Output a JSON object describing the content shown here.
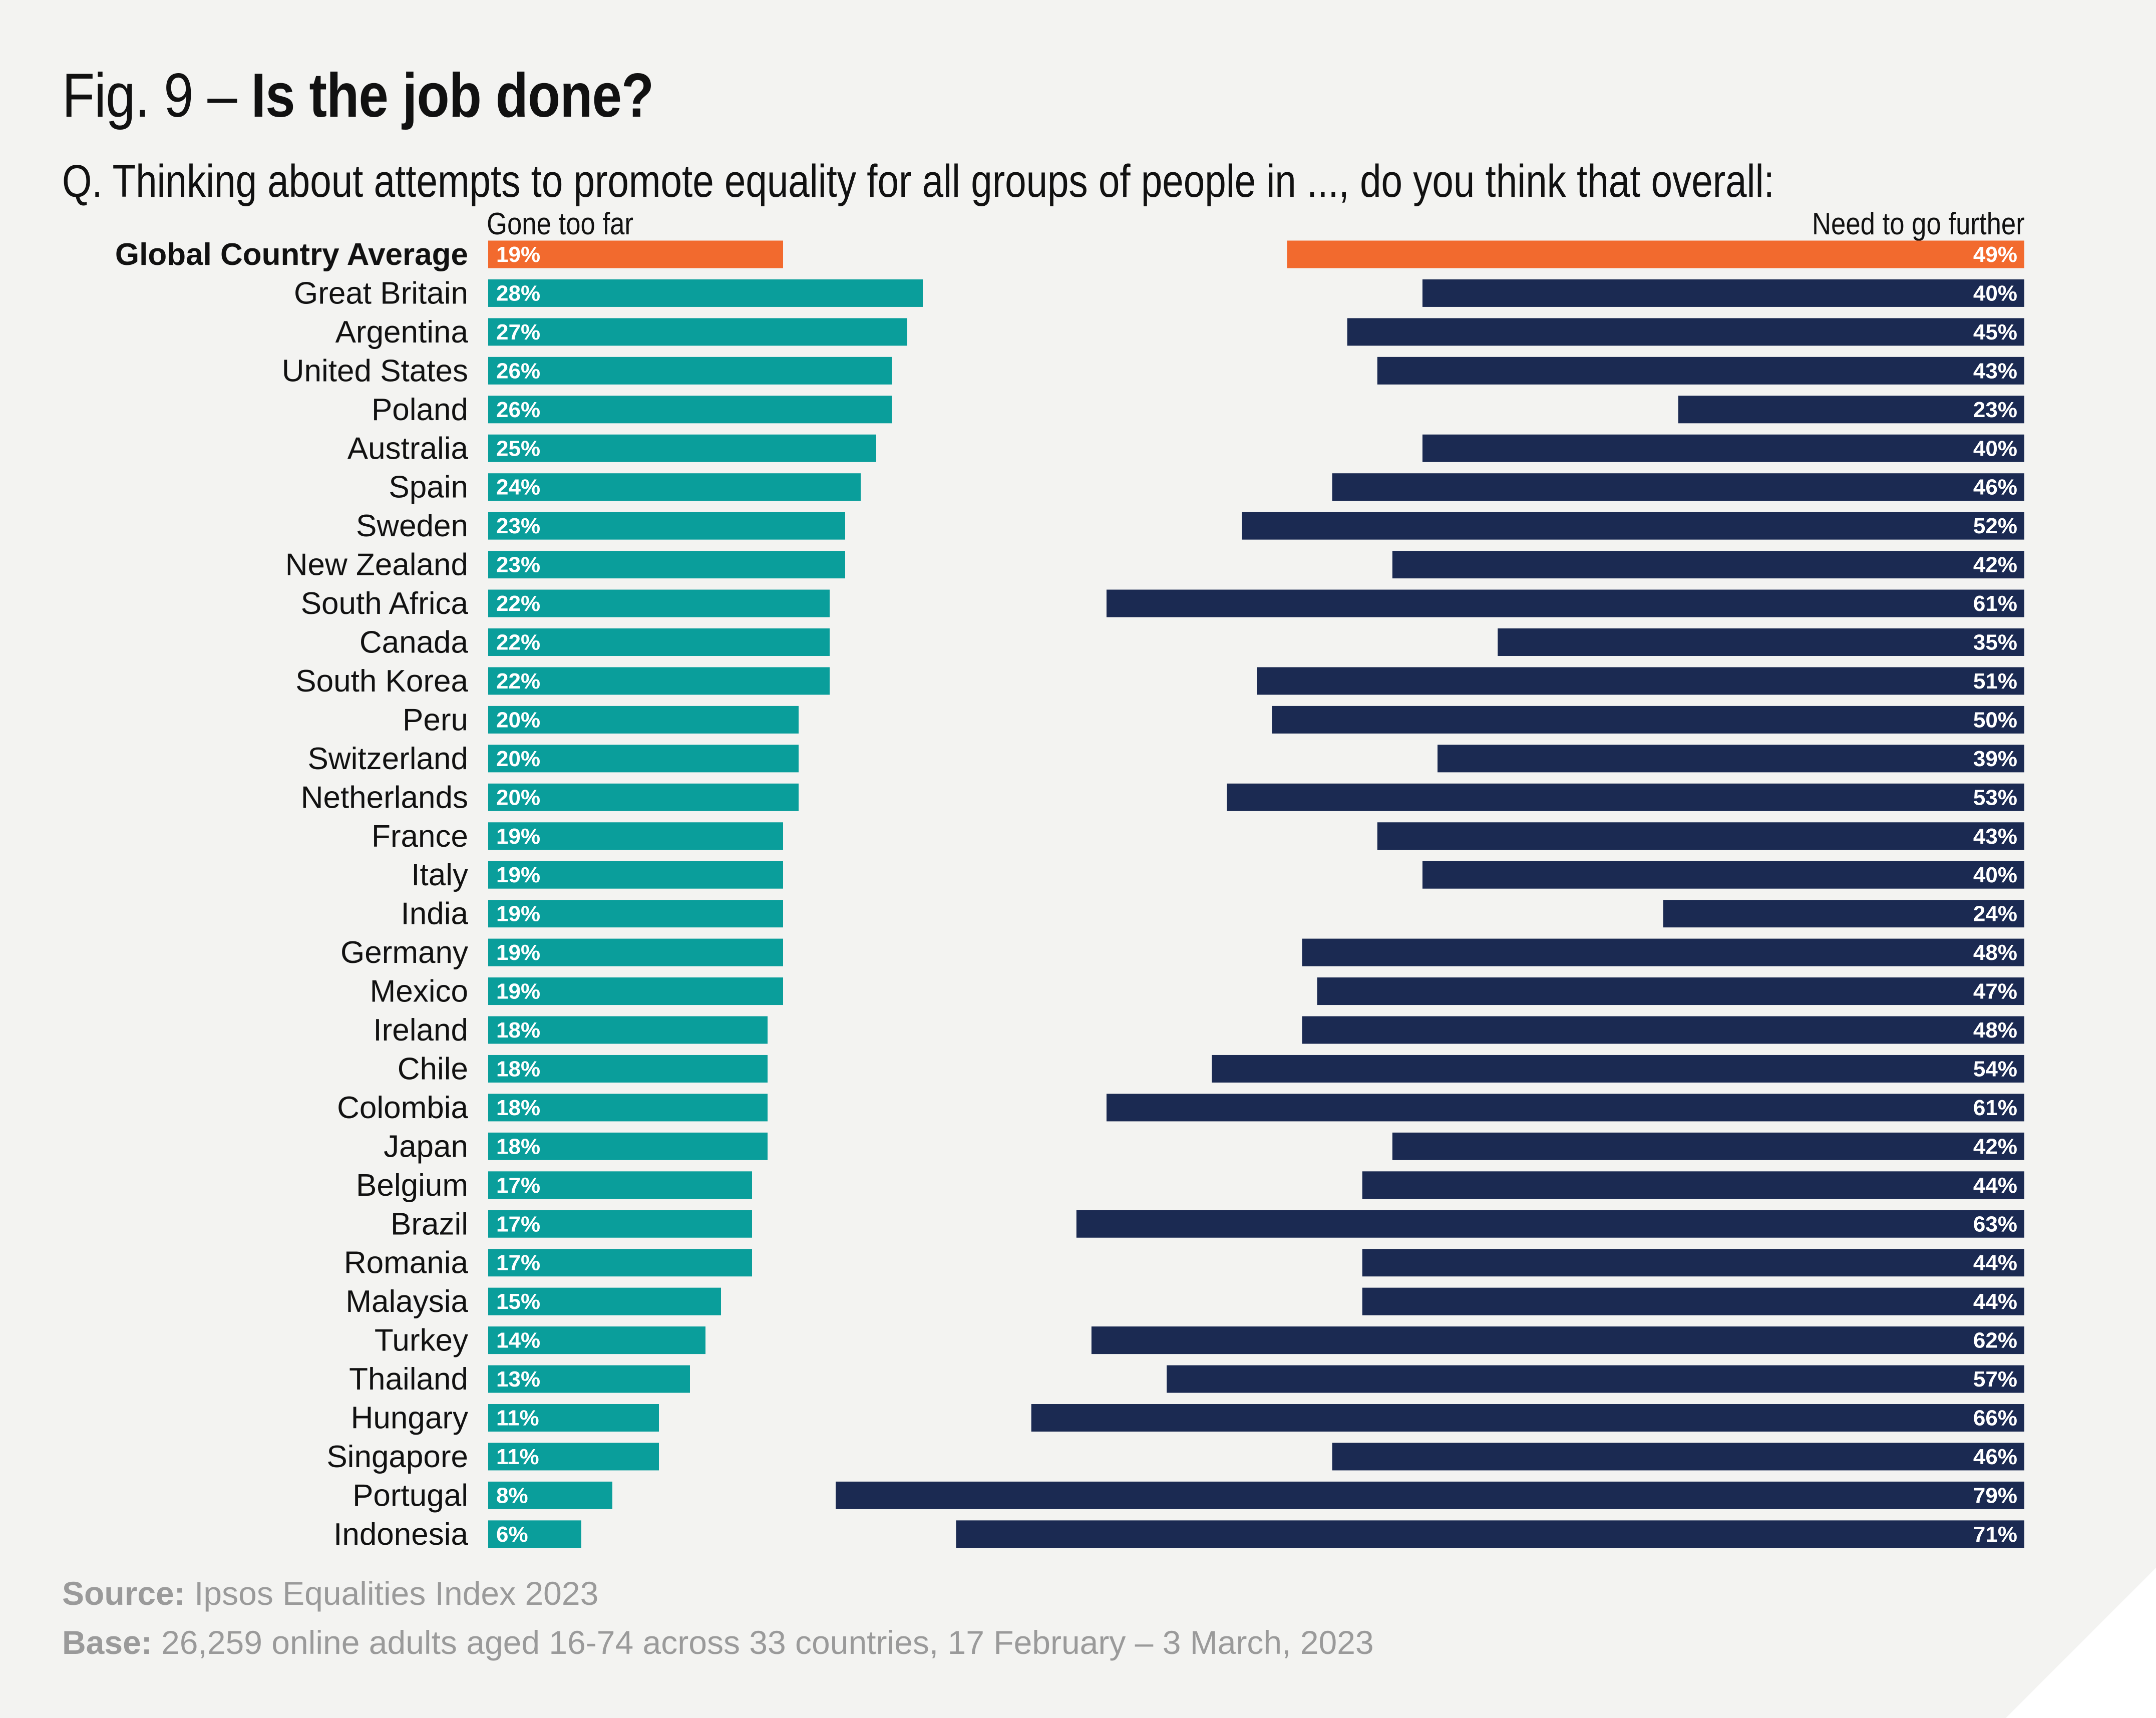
{
  "title": {
    "prefix": "Fig. 9 –",
    "bold": "Is the job done?"
  },
  "question": "Q. Thinking about attempts to promote equality for all groups of people in ..., do you think that overall:",
  "colors": {
    "background": "#f3f3f1",
    "average": "#f26a2e",
    "gone_too_far": "#0a9e9b",
    "need_to_go_further": "#1b2a52",
    "footer_text": "#9a9a9a"
  },
  "chart_data": {
    "type": "bar",
    "orientation": "horizontal",
    "title": "Fig. 9 – Is the job done?",
    "categories": [
      "Global Country Average",
      "Great Britain",
      "Argentina",
      "United States",
      "Poland",
      "Australia",
      "Spain",
      "Sweden",
      "New Zealand",
      "South Africa",
      "Canada",
      "South Korea",
      "Peru",
      "Switzerland",
      "Netherlands",
      "France",
      "Italy",
      "India",
      "Germany",
      "Mexico",
      "Ireland",
      "Chile",
      "Colombia",
      "Japan",
      "Belgium",
      "Brazil",
      "Romania",
      "Malaysia",
      "Turkey",
      "Thailand",
      "Hungary",
      "Singapore",
      "Portugal",
      "Indonesia"
    ],
    "highlight_category": "Global Country Average",
    "series": [
      {
        "name": "Gone too far",
        "anchor": "left",
        "values": [
          19,
          28,
          27,
          26,
          26,
          25,
          24,
          23,
          23,
          22,
          22,
          22,
          20,
          20,
          20,
          19,
          19,
          19,
          19,
          19,
          18,
          18,
          18,
          18,
          17,
          17,
          17,
          15,
          14,
          13,
          11,
          11,
          8,
          6
        ],
        "labels": [
          "19%",
          "28%",
          "27%",
          "26%",
          "26%",
          "25%",
          "24%",
          "23%",
          "23%",
          "22%",
          "22%",
          "22%",
          "20%",
          "20%",
          "20%",
          "19%",
          "19%",
          "19%",
          "19%",
          "19%",
          "18%",
          "18%",
          "18%",
          "18%",
          "17%",
          "17%",
          "17%",
          "15%",
          "14%",
          "13%",
          "11%",
          "11%",
          "8%",
          "6%"
        ]
      },
      {
        "name": "Need to go further",
        "anchor": "right",
        "values": [
          49,
          40,
          45,
          43,
          23,
          40,
          46,
          52,
          42,
          61,
          35,
          51,
          50,
          39,
          53,
          43,
          40,
          24,
          48,
          47,
          48,
          54,
          61,
          42,
          44,
          63,
          44,
          44,
          62,
          57,
          66,
          46,
          79,
          71
        ],
        "labels": [
          "49%",
          "40%",
          "45%",
          "43%",
          "23%",
          "40%",
          "46%",
          "52%",
          "42%",
          "61%",
          "35%",
          "51%",
          "50%",
          "39%",
          "53%",
          "43%",
          "40%",
          "24%",
          "48%",
          "47%",
          "48%",
          "54%",
          "61%",
          "42%",
          "44%",
          "63%",
          "44%",
          "44%",
          "62%",
          "57%",
          "66%",
          "46%",
          "79%",
          "71%"
        ]
      }
    ],
    "xlim": [
      0,
      100
    ],
    "unit": "%"
  },
  "footer": {
    "source_label": "Source:",
    "source_text": " Ipsos Equalities Index 2023",
    "base_label": "Base:",
    "base_text": " 26,259 online adults aged 16-74 across 33 countries, 17 February – 3 March, 2023"
  }
}
